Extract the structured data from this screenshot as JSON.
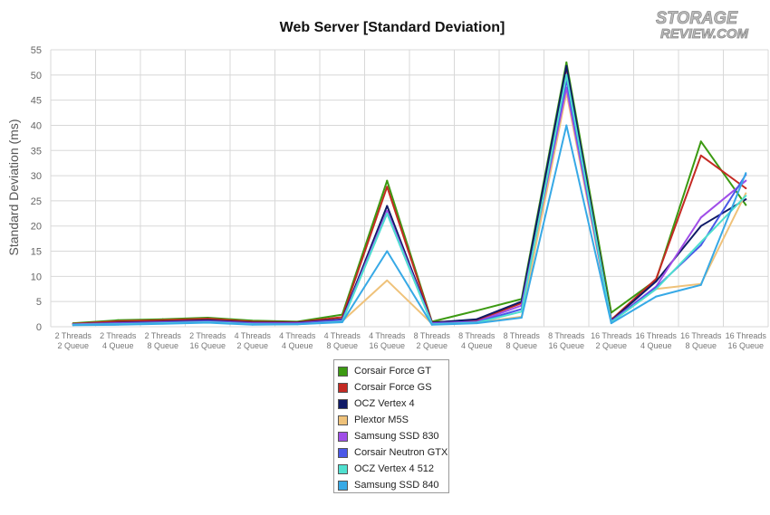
{
  "logo": {
    "line1": "STORAGE",
    "line2": "REVIEW.COM"
  },
  "chart_data": {
    "type": "line",
    "title": "Web Server [Standard Deviation]",
    "xlabel": "",
    "ylabel": "Standard Deviation (ms)",
    "ylim": [
      0,
      55
    ],
    "yticks": [
      0,
      5,
      10,
      15,
      20,
      25,
      30,
      35,
      40,
      45,
      50,
      55
    ],
    "grid": true,
    "legend_position": "bottom-center",
    "categories": [
      [
        "2 Threads",
        "2 Queue"
      ],
      [
        "2 Threads",
        "4 Queue"
      ],
      [
        "2 Threads",
        "8 Queue"
      ],
      [
        "2 Threads",
        "16 Queue"
      ],
      [
        "4 Threads",
        "2 Queue"
      ],
      [
        "4 Threads",
        "4 Queue"
      ],
      [
        "4 Threads",
        "8 Queue"
      ],
      [
        "4 Threads",
        "16 Queue"
      ],
      [
        "8 Threads",
        "2 Queue"
      ],
      [
        "8 Threads",
        "4 Queue"
      ],
      [
        "8 Threads",
        "8 Queue"
      ],
      [
        "8 Threads",
        "16 Queue"
      ],
      [
        "16 Threads",
        "2 Queue"
      ],
      [
        "16 Threads",
        "4 Queue"
      ],
      [
        "16 Threads",
        "8 Queue"
      ],
      [
        "16 Threads",
        "16 Queue"
      ]
    ],
    "series": [
      {
        "name": "Corsair Force GT",
        "color": "#3c9a12",
        "values": [
          0.7,
          1.3,
          1.5,
          1.8,
          1.2,
          1.0,
          2.4,
          29.0,
          1.0,
          3.2,
          5.5,
          52.5,
          2.8,
          9.3,
          36.8,
          24.2
        ]
      },
      {
        "name": "Corsair Force GS",
        "color": "#c42a23",
        "values": [
          0.6,
          1.1,
          1.3,
          1.6,
          1.0,
          0.9,
          1.9,
          27.8,
          0.9,
          1.3,
          4.7,
          51.5,
          1.4,
          9.5,
          34.0,
          27.5
        ]
      },
      {
        "name": "OCZ Vertex 4",
        "color": "#0f1a66",
        "values": [
          0.5,
          0.8,
          1.0,
          1.3,
          0.8,
          0.8,
          1.5,
          24.0,
          0.8,
          1.5,
          5.0,
          51.8,
          1.2,
          9.0,
          20.0,
          25.3
        ]
      },
      {
        "name": "Plextor M5S",
        "color": "#efc27a",
        "values": [
          0.4,
          0.6,
          0.7,
          0.9,
          0.6,
          0.6,
          1.1,
          9.2,
          0.6,
          0.8,
          2.0,
          46.5,
          0.9,
          7.5,
          8.5,
          26.5
        ]
      },
      {
        "name": "Samsung SSD 830",
        "color": "#a04ee8",
        "values": [
          0.5,
          0.7,
          0.9,
          1.1,
          0.7,
          0.7,
          1.3,
          23.0,
          0.7,
          1.0,
          4.2,
          47.5,
          1.1,
          8.0,
          21.7,
          29.0
        ]
      },
      {
        "name": "Corsair Neutron GTX",
        "color": "#4a58e8",
        "values": [
          0.4,
          0.6,
          0.8,
          1.0,
          0.6,
          0.6,
          1.2,
          22.5,
          0.6,
          0.9,
          3.5,
          49.0,
          1.0,
          7.8,
          16.2,
          30.2
        ]
      },
      {
        "name": "OCZ Vertex 4 512",
        "color": "#4fe0cf",
        "values": [
          0.4,
          0.5,
          0.7,
          0.9,
          0.5,
          0.5,
          1.0,
          22.5,
          0.5,
          0.8,
          3.0,
          50.0,
          0.9,
          7.5,
          16.8,
          26.0
        ]
      },
      {
        "name": "Samsung SSD 840",
        "color": "#37a9e6",
        "values": [
          0.3,
          0.4,
          0.6,
          0.8,
          0.4,
          0.5,
          0.9,
          15.0,
          0.4,
          0.7,
          1.8,
          40.0,
          0.7,
          6.0,
          8.3,
          30.5
        ]
      }
    ]
  }
}
